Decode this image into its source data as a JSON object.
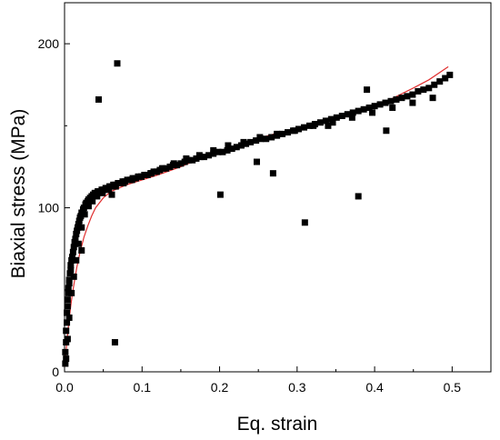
{
  "chart_data": {
    "type": "scatter",
    "xlabel": "Eq. strain",
    "ylabel": "Biaxial stress (MPa)",
    "xlim": [
      0.0,
      0.55
    ],
    "ylim": [
      0,
      225
    ],
    "xticks": [
      0.0,
      0.1,
      0.2,
      0.3,
      0.4,
      0.5
    ],
    "xtick_labels": [
      "0.0",
      "0.1",
      "0.2",
      "0.3",
      "0.4",
      "0.5"
    ],
    "yticks": [
      0,
      100,
      200
    ],
    "ytick_labels": [
      "0",
      "100",
      "200"
    ],
    "grid": false,
    "legend": "none",
    "colors": {
      "points": "#000000",
      "fit": "#e03030",
      "axis": "#000000"
    },
    "series": [
      {
        "kind": "points",
        "marker": "square",
        "x": [
          0.001,
          0.001,
          0.002,
          0.002,
          0.003,
          0.003,
          0.004,
          0.004,
          0.005,
          0.005,
          0.006,
          0.006,
          0.007,
          0.008,
          0.008,
          0.009,
          0.01,
          0.011,
          0.012,
          0.013,
          0.014,
          0.015,
          0.016,
          0.017,
          0.018,
          0.019,
          0.02,
          0.021,
          0.022,
          0.024,
          0.025,
          0.027,
          0.028,
          0.03,
          0.031,
          0.033,
          0.035,
          0.037,
          0.039,
          0.041,
          0.043,
          0.045,
          0.048,
          0.05,
          0.053,
          0.055,
          0.058,
          0.06,
          0.063,
          0.066,
          0.069,
          0.072,
          0.075,
          0.078,
          0.081,
          0.085,
          0.088,
          0.092,
          0.095,
          0.099,
          0.103,
          0.107,
          0.111,
          0.115,
          0.119,
          0.123,
          0.127,
          0.131,
          0.136,
          0.14,
          0.145,
          0.15,
          0.155,
          0.16,
          0.165,
          0.17,
          0.175,
          0.18,
          0.186,
          0.192,
          0.198,
          0.204,
          0.21,
          0.216,
          0.222,
          0.228,
          0.234,
          0.24,
          0.247,
          0.253,
          0.26,
          0.267,
          0.274,
          0.281,
          0.288,
          0.295,
          0.302,
          0.309,
          0.316,
          0.323,
          0.33,
          0.337,
          0.344,
          0.351,
          0.358,
          0.365,
          0.372,
          0.379,
          0.386,
          0.393,
          0.4,
          0.407,
          0.414,
          0.421,
          0.428,
          0.435,
          0.442,
          0.449,
          0.456,
          0.463,
          0.47,
          0.477,
          0.484,
          0.491,
          0.497,
          0.002,
          0.004,
          0.006,
          0.009,
          0.012,
          0.015,
          0.018,
          0.022,
          0.026,
          0.031,
          0.036,
          0.042,
          0.049,
          0.057,
          0.066,
          0.076,
          0.087,
          0.099,
          0.112,
          0.126,
          0.141,
          0.157,
          0.174,
          0.192,
          0.211,
          0.231,
          0.252,
          0.274,
          0.297,
          0.321,
          0.346,
          0.371,
          0.397,
          0.423,
          0.449,
          0.475,
          0.044,
          0.065,
          0.022,
          0.061,
          0.068,
          0.201,
          0.269,
          0.31,
          0.379,
          0.415,
          0.39,
          0.34,
          0.248
        ],
        "y": [
          5,
          12,
          18,
          25,
          30,
          36,
          40,
          44,
          48,
          51,
          54,
          56,
          60,
          62,
          65,
          68,
          70,
          73,
          76,
          79,
          81,
          84,
          86,
          88,
          90,
          92,
          94,
          95,
          97,
          99,
          100,
          102,
          103,
          104,
          105,
          106,
          107,
          108,
          109,
          109,
          110,
          110,
          111,
          111,
          112,
          112,
          113,
          113,
          114,
          114,
          115,
          115,
          116,
          116,
          117,
          117,
          118,
          118,
          119,
          119,
          120,
          120,
          121,
          122,
          122,
          123,
          124,
          124,
          125,
          126,
          126,
          127,
          128,
          129,
          129,
          130,
          131,
          131,
          132,
          133,
          134,
          134,
          135,
          136,
          137,
          138,
          139,
          140,
          141,
          142,
          142,
          143,
          144,
          145,
          146,
          147,
          148,
          149,
          150,
          151,
          152,
          153,
          154,
          155,
          156,
          157,
          158,
          159,
          160,
          161,
          162,
          163,
          164,
          165,
          166,
          167,
          168,
          169,
          171,
          172,
          173,
          175,
          177,
          179,
          181,
          8,
          20,
          33,
          48,
          58,
          68,
          78,
          88,
          96,
          101,
          104,
          107,
          109,
          111,
          113,
          115,
          117,
          119,
          121,
          124,
          127,
          130,
          132,
          135,
          138,
          140,
          143,
          145,
          147,
          150,
          152,
          155,
          158,
          161,
          164,
          167,
          166,
          18,
          74,
          108,
          188,
          108,
          121,
          91,
          107,
          147,
          172,
          150,
          128
        ]
      },
      {
        "kind": "fit-line",
        "x": [
          0.0,
          0.002,
          0.004,
          0.006,
          0.008,
          0.01,
          0.013,
          0.016,
          0.02,
          0.025,
          0.03,
          0.035,
          0.04,
          0.05,
          0.06,
          0.07,
          0.08,
          0.1,
          0.12,
          0.15,
          0.18,
          0.21,
          0.24,
          0.27,
          0.3,
          0.33,
          0.36,
          0.39,
          0.42,
          0.45,
          0.47,
          0.495
        ],
        "y": [
          3,
          13,
          23,
          32,
          40,
          47,
          56,
          64,
          73,
          82,
          89,
          95,
          100,
          106,
          110,
          112,
          114,
          117,
          120,
          125,
          131,
          136,
          141,
          145,
          148,
          151,
          155,
          160,
          166,
          173,
          178,
          186
        ]
      }
    ]
  }
}
